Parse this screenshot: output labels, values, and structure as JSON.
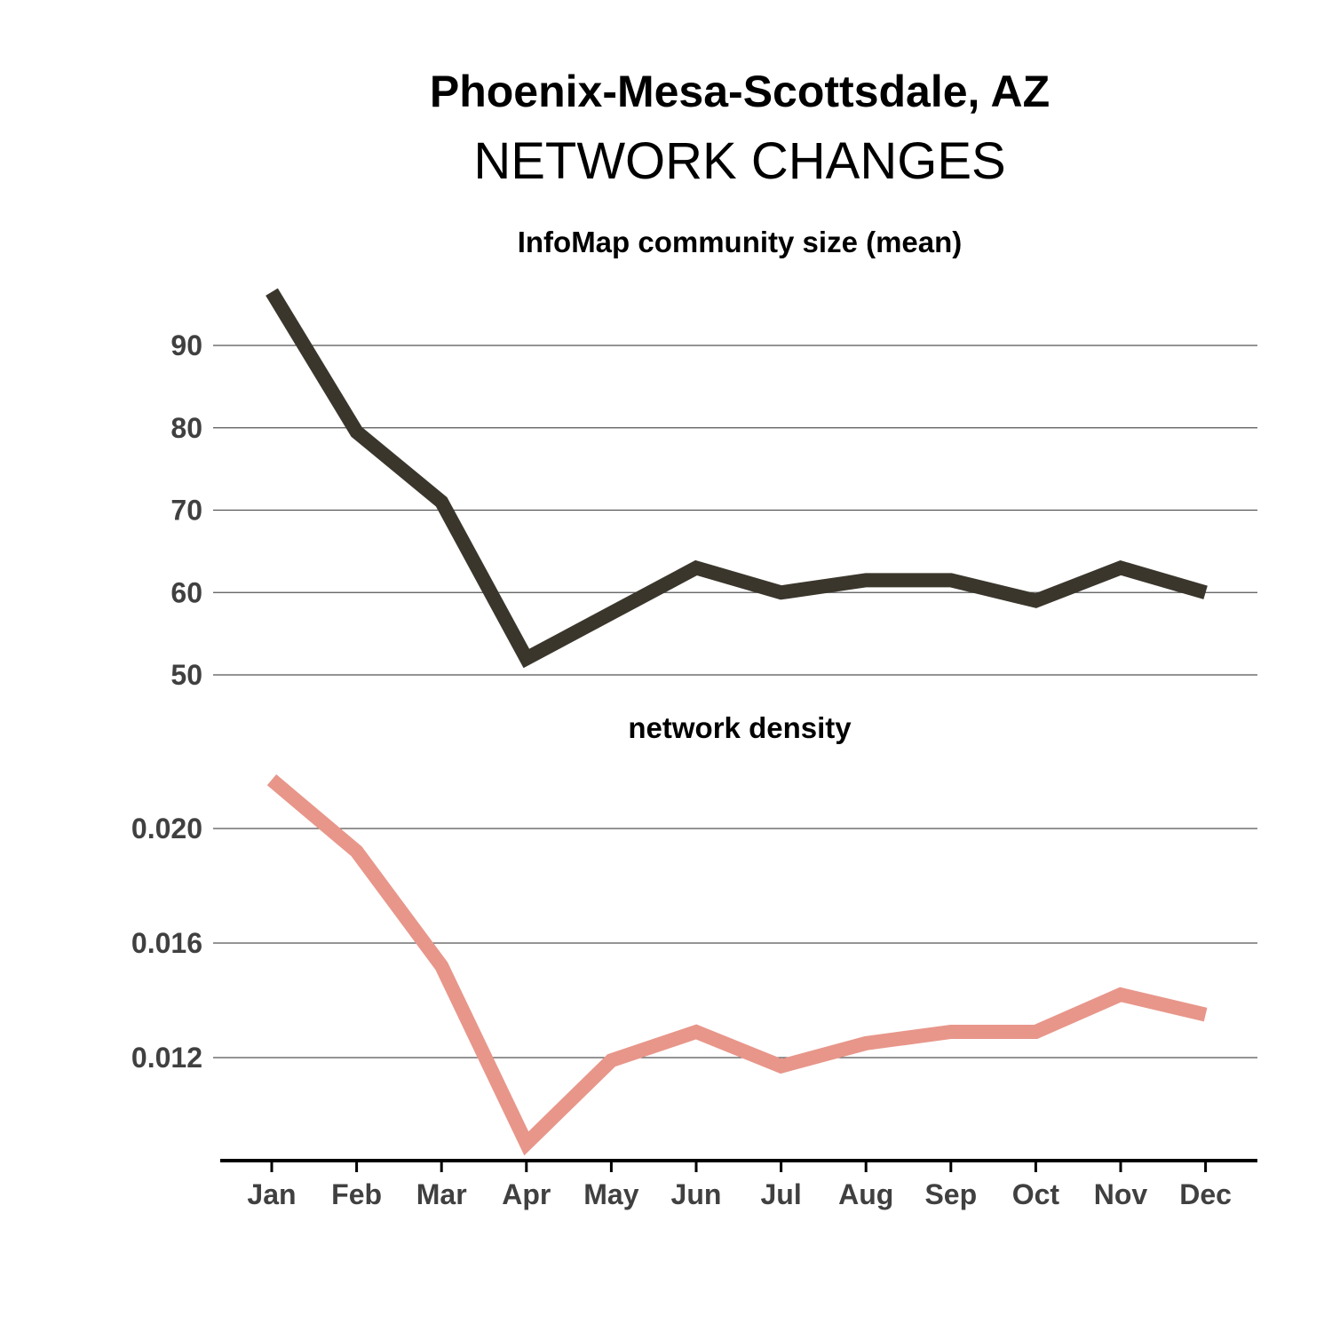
{
  "title": "Phoenix-Mesa-Scottsdale, AZ",
  "subtitle": "NETWORK CHANGES",
  "colors": {
    "series1": "#3a362c",
    "series2": "#e8968a",
    "grid": "#555555",
    "axis": "#000000"
  },
  "chart_data": [
    {
      "type": "line",
      "title": "InfoMap community size (mean)",
      "categories": [
        "Jan",
        "Feb",
        "Mar",
        "Apr",
        "May",
        "Jun",
        "Jul",
        "Aug",
        "Sep",
        "Oct",
        "Nov",
        "Dec"
      ],
      "values": [
        96.5,
        79.5,
        71,
        52,
        57.5,
        63,
        60,
        61.5,
        61.5,
        59,
        63,
        60
      ],
      "yticks": [
        50,
        60,
        70,
        80,
        90
      ],
      "ytick_labels": [
        "50",
        "60",
        "70",
        "80",
        "90"
      ],
      "ylim": [
        50,
        90
      ],
      "grid": true
    },
    {
      "type": "line",
      "title": "network density",
      "categories": [
        "Jan",
        "Feb",
        "Mar",
        "Apr",
        "May",
        "Jun",
        "Jul",
        "Aug",
        "Sep",
        "Oct",
        "Nov",
        "Dec"
      ],
      "values": [
        0.0217,
        0.0192,
        0.0152,
        0.009,
        0.0119,
        0.0129,
        0.0117,
        0.0125,
        0.0129,
        0.0129,
        0.0142,
        0.0135
      ],
      "yticks": [
        0.012,
        0.016,
        0.02
      ],
      "ytick_labels": [
        "0.012",
        "0.016",
        "0.020"
      ],
      "ylim": [
        0.012,
        0.02
      ],
      "grid": true
    }
  ]
}
